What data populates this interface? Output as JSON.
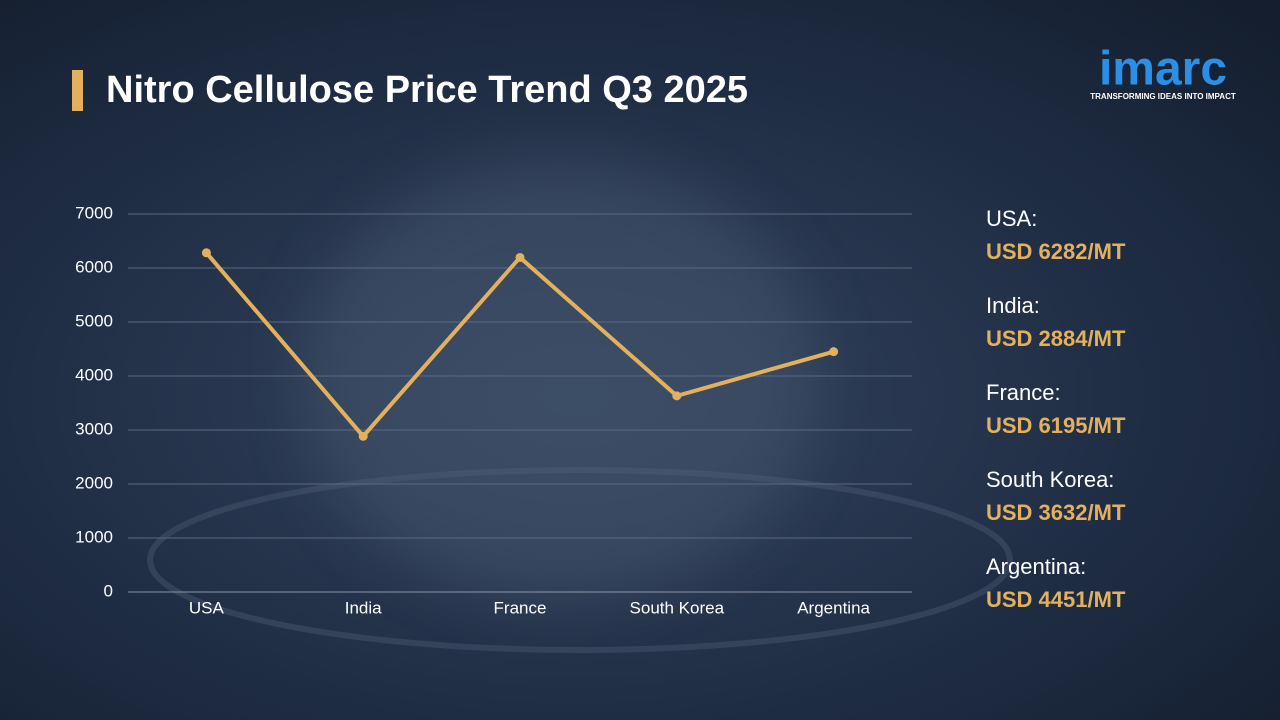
{
  "chart_data": {
    "type": "line",
    "title": "Nitro Cellulose Price Trend Q3 2025",
    "categories": [
      "USA",
      "India",
      "France",
      "South Korea",
      "Argentina"
    ],
    "values": [
      6282,
      2884,
      6195,
      3632,
      4451
    ],
    "color": "#e3b15e",
    "ylim": [
      0,
      7000
    ],
    "yticks": [
      0,
      1000,
      2000,
      3000,
      4000,
      5000,
      6000,
      7000
    ],
    "grid": true,
    "side_labels": [
      "USA:",
      "India:",
      "France:",
      "South Korea:",
      "Argentina:"
    ],
    "value_labels": [
      "USD 6282/MT",
      "USD 2884/MT",
      "USD 6195/MT",
      "USD 3632/MT",
      "USD 4451/MT"
    ]
  },
  "logo": {
    "name": "imarc",
    "tagline": "TRANSFORMING IDEAS INTO IMPACT"
  }
}
